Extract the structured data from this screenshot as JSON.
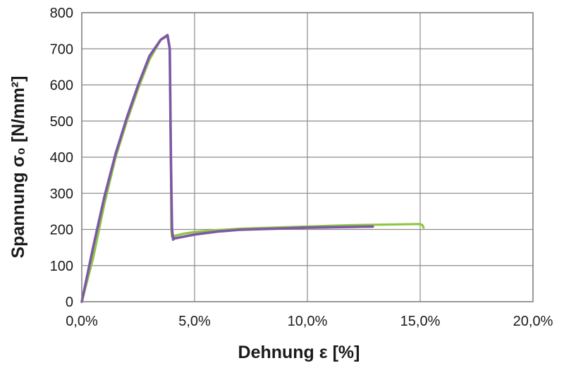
{
  "chart_data": {
    "type": "line",
    "title": "",
    "xlabel": "Dehnung ε [%]",
    "ylabel": "Spannung σ₀ [N/mm²]",
    "xlim": [
      0,
      20
    ],
    "ylim": [
      0,
      800
    ],
    "x_tick_labels": [
      "0,0%",
      "5,0%",
      "10,0%",
      "15,0%",
      "20,0%"
    ],
    "x_tick_values": [
      0,
      5,
      10,
      15,
      20
    ],
    "y_tick_labels": [
      "0",
      "100",
      "200",
      "300",
      "400",
      "500",
      "600",
      "700",
      "800"
    ],
    "y_tick_values": [
      0,
      100,
      200,
      300,
      400,
      500,
      600,
      700,
      800
    ],
    "grid": true,
    "legend": "none",
    "series": [
      {
        "color": "#8dc63f",
        "x": [
          0.0,
          0.5,
          1.0,
          1.5,
          2.0,
          2.5,
          3.0,
          3.5,
          3.8,
          3.9,
          3.95,
          3.97,
          4.0,
          4.1,
          4.5,
          5.0,
          6.0,
          7.0,
          8.0,
          9.0,
          10.0,
          11.0,
          12.0,
          13.0,
          14.0,
          15.0,
          15.1,
          15.15
        ],
        "values": [
          0,
          120,
          270,
          400,
          500,
          590,
          670,
          725,
          735,
          700,
          400,
          200,
          180,
          182,
          188,
          193,
          198,
          202,
          204,
          206,
          208,
          210,
          212,
          213,
          214,
          215,
          212,
          205
        ]
      },
      {
        "color": "#7e57a6",
        "x": [
          0.0,
          0.5,
          1.0,
          1.5,
          2.0,
          2.5,
          3.0,
          3.5,
          3.8,
          3.9,
          3.95,
          4.0,
          4.05,
          4.1,
          4.5,
          5.0,
          6.0,
          7.0,
          8.0,
          9.0,
          10.0,
          11.0,
          12.0,
          12.9
        ],
        "values": [
          0,
          150,
          290,
          410,
          510,
          600,
          680,
          725,
          738,
          700,
          400,
          200,
          172,
          175,
          180,
          186,
          194,
          199,
          201,
          203,
          205,
          206,
          207,
          208
        ]
      }
    ]
  }
}
